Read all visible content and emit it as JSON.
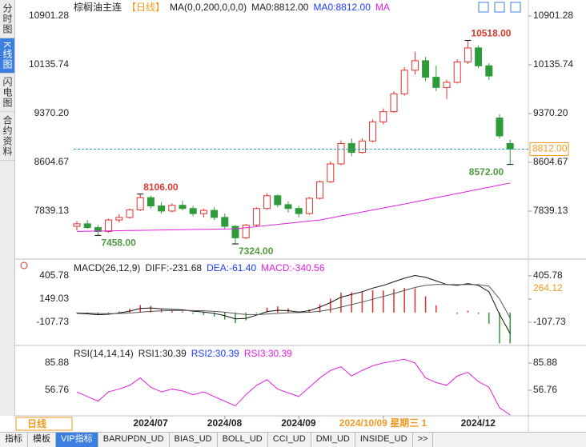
{
  "chart_data": [
    {
      "type": "candlestick",
      "title": "棕榈油主连",
      "period": "【日线】",
      "indicator": "MA(0,0,200,0,0,0)",
      "legend_items": [
        {
          "label": "MA0:8812.00",
          "color": "#222222"
        },
        {
          "label": "MA0:8812.00",
          "color": "#1a3cff"
        },
        {
          "label": "MA",
          "color": "#e020e0"
        }
      ],
      "categories": [
        null,
        null,
        null,
        null,
        null,
        null,
        null,
        "2024/07",
        null,
        null,
        null,
        null,
        null,
        null,
        "2024/08",
        null,
        null,
        null,
        null,
        null,
        null,
        "2024/09",
        null,
        null,
        null,
        null,
        null,
        null,
        null,
        "2024/10/09 星期三 1",
        null,
        null,
        null,
        null,
        null,
        null,
        null,
        null,
        "2024/12",
        null,
        null,
        null
      ],
      "ohlc": [
        [
          7600,
          7680,
          7540,
          7640
        ],
        [
          7640,
          7700,
          7560,
          7580
        ],
        [
          7580,
          7620,
          7458,
          7520
        ],
        [
          7520,
          7720,
          7500,
          7700
        ],
        [
          7700,
          7790,
          7660,
          7740
        ],
        [
          7740,
          7880,
          7720,
          7860
        ],
        [
          7860,
          8106,
          7840,
          8050
        ],
        [
          8050,
          8080,
          7880,
          7920
        ],
        [
          7920,
          7980,
          7800,
          7840
        ],
        [
          7840,
          7960,
          7820,
          7930
        ],
        [
          7930,
          8000,
          7850,
          7880
        ],
        [
          7880,
          7920,
          7760,
          7800
        ],
        [
          7800,
          7880,
          7740,
          7850
        ],
        [
          7850,
          7900,
          7700,
          7740
        ],
        [
          7740,
          7800,
          7560,
          7600
        ],
        [
          7600,
          7620,
          7324,
          7420
        ],
        [
          7420,
          7640,
          7400,
          7620
        ],
        [
          7620,
          7900,
          7600,
          7880
        ],
        [
          7880,
          8120,
          7860,
          8080
        ],
        [
          8080,
          8100,
          7900,
          7940
        ],
        [
          7940,
          7990,
          7820,
          7880
        ],
        [
          7880,
          7920,
          7740,
          7800
        ],
        [
          7800,
          8060,
          7780,
          8040
        ],
        [
          8040,
          8320,
          8020,
          8300
        ],
        [
          8300,
          8620,
          8280,
          8580
        ],
        [
          8580,
          8950,
          8560,
          8900
        ],
        [
          8900,
          8980,
          8700,
          8760
        ],
        [
          8760,
          8980,
          8740,
          8940
        ],
        [
          8940,
          9280,
          8920,
          9240
        ],
        [
          9240,
          9450,
          9200,
          9400
        ],
        [
          9400,
          9720,
          9380,
          9680
        ],
        [
          9680,
          10100,
          9650,
          10050
        ],
        [
          10050,
          10340,
          9980,
          10200
        ],
        [
          10200,
          10260,
          9880,
          9940
        ],
        [
          9940,
          10120,
          9720,
          9780
        ],
        [
          9780,
          9900,
          9600,
          9860
        ],
        [
          9860,
          10220,
          9840,
          10180
        ],
        [
          10180,
          10518,
          10150,
          10400
        ],
        [
          10400,
          10440,
          10080,
          10120
        ],
        [
          10120,
          10160,
          9900,
          9960
        ],
        [
          9300,
          9360,
          8980,
          9020
        ],
        [
          8900,
          8960,
          8572,
          8812
        ]
      ],
      "up_color": "#e0302c",
      "down_color": "#2f9a3a",
      "series": [
        {
          "color": "#e020e0",
          "values": [
            7520,
            7523,
            7526,
            7528,
            7531,
            7534,
            7536,
            7539,
            7542,
            7544,
            7547,
            7550,
            7552,
            7555,
            7558,
            7560,
            7578,
            7595,
            7613,
            7630,
            7648,
            7665,
            7683,
            7700,
            7731,
            7763,
            7794,
            7825,
            7856,
            7888,
            7919,
            7950,
            7983,
            8016,
            8049,
            8082,
            8115,
            8148,
            8181,
            8214,
            8247,
            8280
          ]
        }
      ],
      "ylim": [
        7111,
        11052
      ],
      "yticks": [
        {
          "value": 10901.28,
          "label": "10901.28"
        },
        {
          "value": 10135.74,
          "label": "10135.74"
        },
        {
          "value": 9370.2,
          "label": "9370.20"
        },
        {
          "value": 8604.67,
          "label": "8604.67"
        },
        {
          "value": 7839.13,
          "label": "7839.13"
        }
      ],
      "annotations": [
        {
          "value": 10518,
          "label": "10518.00"
        },
        {
          "value": 8572,
          "label": "8572.00"
        },
        {
          "value": 8106,
          "label": "8106.00"
        },
        {
          "value": 7458,
          "label": "7458.00"
        },
        {
          "value": 7324,
          "label": "7324.00"
        }
      ],
      "last": {
        "value": 8812,
        "label": "8812.00",
        "color": "#f39a1e"
      },
      "period_label": "日线",
      "grid": false
    },
    {
      "type": "macd",
      "title": "MACD(26,12,9)",
      "readouts": [
        {
          "label": "DIFF:-231.68",
          "color": "#222222"
        },
        {
          "label": "DEA:-61.40",
          "color": "#1a3cff"
        },
        {
          "label": "MACD:-340.56",
          "color": "#e020e0"
        }
      ],
      "series": [
        {
          "color": "#111111",
          "values": [
            -10,
            -15,
            -25,
            -20,
            -5,
            15,
            45,
            50,
            40,
            35,
            30,
            15,
            5,
            -10,
            -35,
            -70,
            -65,
            -30,
            10,
            25,
            20,
            5,
            20,
            60,
            110,
            170,
            200,
            230,
            270,
            300,
            340,
            380,
            410,
            390,
            350,
            310,
            300,
            320,
            300,
            230,
            -20,
            -231.68
          ]
        },
        {
          "color": "#555555",
          "values": [
            -5,
            -7,
            -11,
            -13,
            -11,
            -6,
            4,
            13,
            18,
            22,
            24,
            22,
            19,
            13,
            4,
            -11,
            -22,
            -24,
            -17,
            -9,
            -3,
            -1,
            3,
            14,
            33,
            60,
            88,
            116,
            147,
            178,
            210,
            244,
            277,
            300,
            310,
            310,
            308,
            310,
            308,
            292,
            150,
            -61.4
          ]
        }
      ],
      "histogram": {
        "values": [
          -10,
          -16,
          -28,
          -14,
          12,
          42,
          82,
          74,
          44,
          26,
          12,
          -14,
          -28,
          -46,
          -78,
          -118,
          -86,
          -12,
          54,
          68,
          46,
          12,
          34,
          92,
          154,
          220,
          224,
          228,
          246,
          244,
          260,
          272,
          266,
          180,
          80,
          0,
          -16,
          20,
          -16,
          -124,
          -340,
          -340.56
        ],
        "up_color": "#e0302c",
        "down_color": "#2f9a3a"
      },
      "ylim": [
        -347,
        556
      ],
      "yticks": [
        {
          "value": 405.78,
          "label": "405.78"
        },
        {
          "value": 149.03,
          "label": "149.03"
        },
        {
          "value": -107.73,
          "label": "-107.73"
        }
      ],
      "cursor_value": {
        "value": 264.12,
        "label": "264.12",
        "color": "#f39a1e"
      }
    },
    {
      "type": "line",
      "title": "RSI(14,14,14)",
      "readouts": [
        {
          "label": "RSI1:30.39",
          "color": "#222222"
        },
        {
          "label": "RSI2:30.39",
          "color": "#1a3cff"
        },
        {
          "label": "RSI3:30.39",
          "color": "#e020e0"
        }
      ],
      "series": [
        {
          "color": "#e020e0",
          "values": [
            55,
            50,
            45,
            55,
            58,
            62,
            70,
            60,
            55,
            58,
            56,
            52,
            55,
            50,
            45,
            40,
            52,
            62,
            68,
            58,
            54,
            50,
            60,
            70,
            78,
            82,
            72,
            78,
            83,
            86,
            88,
            90,
            86,
            70,
            65,
            62,
            72,
            76,
            66,
            60,
            38,
            30.39
          ]
        }
      ],
      "ylim": [
        29.35,
        102.2
      ],
      "yticks": [
        85.88,
        56.76
      ]
    }
  ],
  "sidebar": [
    {
      "label": "分时图"
    },
    {
      "label": "K线图",
      "active": true
    },
    {
      "label": "闪电图"
    },
    {
      "label": "合约资料"
    }
  ],
  "tabs": [
    {
      "label": "指标"
    },
    {
      "label": "模板"
    },
    {
      "label": "VIP指标",
      "active": true
    },
    {
      "label": "BARUPDN_UD"
    },
    {
      "label": "BIAS_UD"
    },
    {
      "label": "BOLL_UD"
    },
    {
      "label": "CCI_UD"
    },
    {
      "label": "DMI_UD"
    },
    {
      "label": "INSIDE_UD"
    },
    {
      "label": ">>"
    }
  ]
}
